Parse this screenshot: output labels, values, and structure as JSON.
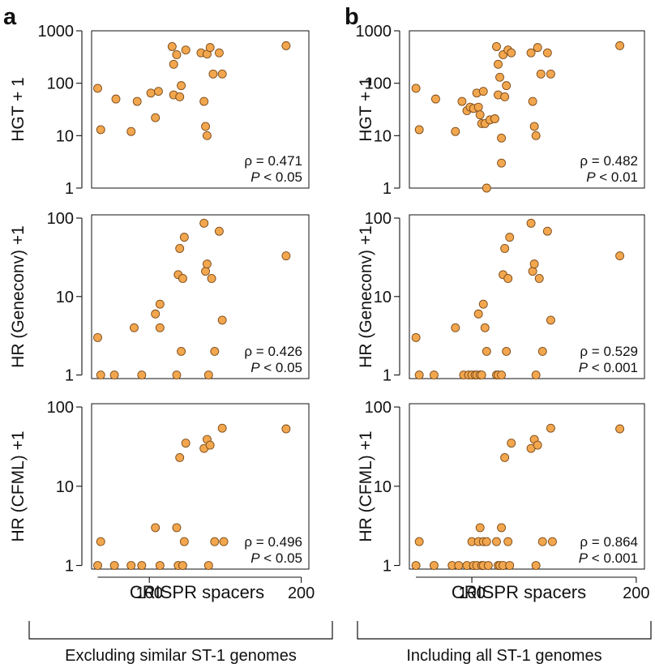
{
  "panel_letters": [
    "a",
    "b"
  ],
  "xlabel": "CRISPR spacers",
  "column_captions": [
    "Excluding similar ST-1 genomes",
    "Including all ST-1 genomes"
  ],
  "rho_symbol": "ρ",
  "colors": {
    "marker_fill": "#F2A64E",
    "marker_edge": "#7A4A18",
    "axis": "#111111"
  },
  "chart_data": [
    {
      "type": "scatter",
      "column": "a",
      "row": 0,
      "ylabel": "HGT + 1",
      "yscale": "log",
      "ylim": [
        1,
        1000
      ],
      "yticks": [
        1,
        10,
        100,
        1000
      ],
      "xlim": [
        62,
        205
      ],
      "xticks": [],
      "rho": "= 0.471",
      "p": "< 0.05",
      "x": [
        66,
        68,
        78,
        88,
        92,
        101,
        104,
        106,
        115,
        116,
        116,
        118,
        120,
        121,
        124,
        134,
        136,
        137,
        138,
        138,
        140,
        142,
        146,
        148,
        190
      ],
      "y": [
        80,
        13,
        50,
        12,
        45,
        65,
        22,
        70,
        500,
        230,
        60,
        350,
        55,
        90,
        430,
        380,
        45,
        15,
        10,
        360,
        480,
        150,
        380,
        150,
        520
      ]
    },
    {
      "type": "scatter",
      "column": "a",
      "row": 1,
      "ylabel": "HR (Geneconv) +1",
      "yscale": "log",
      "ylim": [
        0.9,
        110
      ],
      "yticks": [
        1,
        10,
        100
      ],
      "xlim": [
        62,
        205
      ],
      "xticks": [],
      "rho": "= 0.426",
      "p": "< 0.05",
      "x": [
        66,
        68,
        77,
        90,
        95,
        104,
        107,
        107,
        118,
        119,
        120,
        121,
        122,
        123,
        136,
        137,
        138,
        139,
        141,
        143,
        146,
        148,
        190
      ],
      "y": [
        3,
        1,
        1,
        4,
        1,
        6,
        8,
        4,
        1,
        19,
        41,
        2,
        17,
        57,
        86,
        21,
        26,
        1,
        17,
        2,
        68,
        5,
        33
      ]
    },
    {
      "type": "scatter",
      "column": "a",
      "row": 2,
      "ylabel": "HR (CFML) +1",
      "yscale": "log",
      "ylim": [
        0.9,
        110
      ],
      "yticks": [
        1,
        10,
        100
      ],
      "xlim": [
        62,
        205
      ],
      "xticks": [
        100,
        200
      ],
      "rho": "= 0.496",
      "p": "< 0.05",
      "x": [
        66,
        68,
        77,
        88,
        95,
        104,
        107,
        118,
        119,
        120,
        122,
        123,
        124,
        136,
        138,
        139,
        140,
        143,
        148,
        149,
        190
      ],
      "y": [
        1,
        2,
        1,
        1,
        1,
        3,
        1,
        3,
        1,
        23,
        1,
        2,
        35,
        30,
        39,
        1,
        33,
        2,
        54,
        2,
        53
      ]
    },
    {
      "type": "scatter",
      "column": "b",
      "row": 0,
      "ylabel": "HGT + 1",
      "yscale": "log",
      "ylim": [
        1,
        1000
      ],
      "yticks": [
        1,
        10,
        100,
        1000
      ],
      "xlim": [
        62,
        205
      ],
      "xticks": [],
      "rho": "= 0.482",
      "p": "< 0.01",
      "x": [
        66,
        68,
        78,
        90,
        94,
        97,
        99,
        101,
        103,
        104,
        105,
        106,
        107,
        108,
        109,
        111,
        114,
        115,
        116,
        116,
        117,
        118,
        118,
        119,
        120,
        121,
        122,
        124,
        136,
        137,
        138,
        139,
        140,
        142,
        146,
        148,
        190
      ],
      "y": [
        80,
        13,
        50,
        12,
        45,
        30,
        35,
        33,
        65,
        35,
        25,
        17,
        70,
        17,
        1,
        20,
        21,
        500,
        230,
        60,
        130,
        9,
        3,
        350,
        55,
        90,
        430,
        380,
        380,
        45,
        15,
        10,
        480,
        150,
        380,
        150,
        520
      ]
    },
    {
      "type": "scatter",
      "column": "b",
      "row": 1,
      "ylabel": "HR (Geneconv) +1",
      "yscale": "log",
      "ylim": [
        0.9,
        110
      ],
      "yticks": [
        1,
        10,
        100
      ],
      "xlim": [
        62,
        205
      ],
      "xticks": [],
      "rho": "= 0.529",
      "p": "< 0.001",
      "x": [
        66,
        68,
        77,
        90,
        95,
        98,
        100,
        102,
        103,
        104,
        105,
        106,
        107,
        108,
        109,
        115,
        116,
        118,
        119,
        120,
        121,
        122,
        123,
        136,
        137,
        138,
        139,
        141,
        143,
        146,
        148,
        190
      ],
      "y": [
        3,
        1,
        1,
        4,
        1,
        1,
        1,
        1,
        1,
        6,
        1,
        1,
        8,
        4,
        2,
        1,
        1,
        1,
        19,
        41,
        2,
        17,
        57,
        86,
        21,
        26,
        1,
        17,
        2,
        68,
        5,
        33
      ]
    },
    {
      "type": "scatter",
      "column": "b",
      "row": 2,
      "ylabel": "HR (CFML) +1",
      "yscale": "log",
      "ylim": [
        0.9,
        110
      ],
      "yticks": [
        1,
        10,
        100
      ],
      "xlim": [
        62,
        205
      ],
      "xticks": [
        100,
        200
      ],
      "rho": "= 0.864",
      "p": "< 0.001",
      "x": [
        66,
        68,
        77,
        88,
        92,
        97,
        100,
        101,
        103,
        104,
        105,
        106,
        107,
        107,
        109,
        110,
        115,
        116,
        117,
        118,
        119,
        120,
        122,
        123,
        124,
        136,
        138,
        139,
        140,
        143,
        148,
        149,
        190
      ],
      "y": [
        1,
        2,
        1,
        1,
        1,
        1,
        2,
        1,
        1,
        2,
        3,
        1,
        2,
        1,
        2,
        1,
        2,
        1,
        1,
        3,
        1,
        23,
        2,
        1,
        35,
        30,
        39,
        1,
        33,
        2,
        54,
        2,
        53
      ]
    }
  ]
}
